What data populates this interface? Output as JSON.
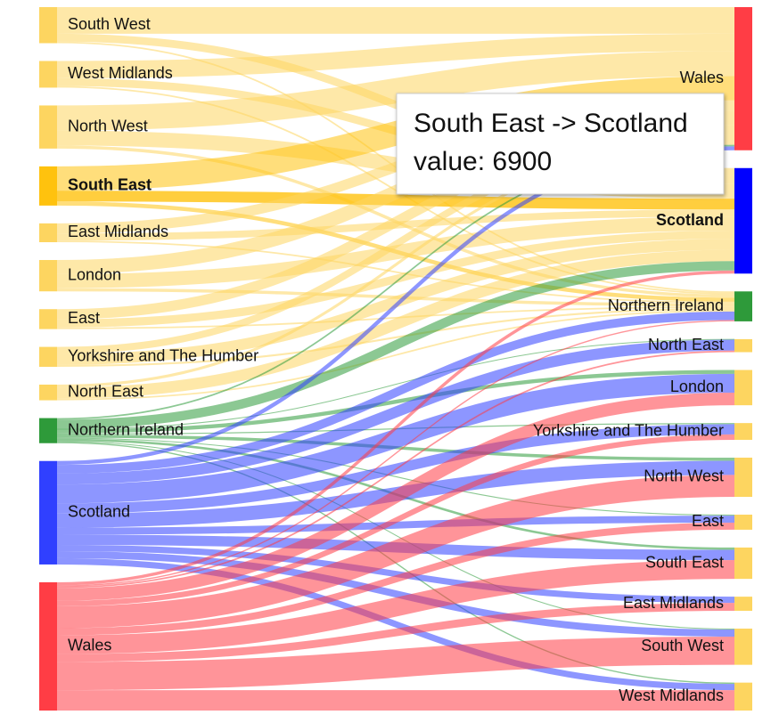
{
  "chart_data": {
    "type": "sankey",
    "nodes": [
      {
        "name": "South West",
        "color": "#fdd560",
        "side": "left"
      },
      {
        "name": "West Midlands",
        "color": "#fdd560",
        "side": "left"
      },
      {
        "name": "North West",
        "color": "#fdd560",
        "side": "left"
      },
      {
        "name": "South East",
        "color": "#ffc20e",
        "side": "left"
      },
      {
        "name": "East Midlands",
        "color": "#fdd560",
        "side": "left"
      },
      {
        "name": "London",
        "color": "#fdd560",
        "side": "left"
      },
      {
        "name": "East",
        "color": "#fdd560",
        "side": "left"
      },
      {
        "name": "Yorkshire and The Humber",
        "color": "#fdd560",
        "side": "left"
      },
      {
        "name": "North East",
        "color": "#fdd560",
        "side": "left"
      },
      {
        "name": "Northern Ireland",
        "color": "#2e9a3a",
        "side": "left"
      },
      {
        "name": "Scotland",
        "color": "#3040ff",
        "side": "left"
      },
      {
        "name": "Wales",
        "color": "#ff3d45",
        "side": "left"
      },
      {
        "name": "Wales",
        "color": "#ff3d45",
        "side": "right"
      },
      {
        "name": "Scotland",
        "color": "#0000ff",
        "side": "right"
      },
      {
        "name": "Northern Ireland",
        "color": "#2e9a3a",
        "side": "right"
      },
      {
        "name": "North East",
        "color": "#fdd560",
        "side": "right"
      },
      {
        "name": "London",
        "color": "#fdd560",
        "side": "right"
      },
      {
        "name": "Yorkshire and The Humber",
        "color": "#fdd560",
        "side": "right"
      },
      {
        "name": "North West",
        "color": "#fdd560",
        "side": "right"
      },
      {
        "name": "East",
        "color": "#fdd560",
        "side": "right"
      },
      {
        "name": "South East",
        "color": "#fdd560",
        "side": "right"
      },
      {
        "name": "East Midlands",
        "color": "#fdd560",
        "side": "right"
      },
      {
        "name": "South West",
        "color": "#fdd560",
        "side": "right"
      },
      {
        "name": "West Midlands",
        "color": "#fdd560",
        "side": "right"
      }
    ],
    "links": [
      {
        "source": 0,
        "target": 12,
        "value": 17000
      },
      {
        "source": 0,
        "target": 13,
        "value": 5000
      },
      {
        "source": 0,
        "target": 14,
        "value": 1000
      },
      {
        "source": 1,
        "target": 12,
        "value": 11000
      },
      {
        "source": 1,
        "target": 13,
        "value": 5000
      },
      {
        "source": 1,
        "target": 14,
        "value": 1000
      },
      {
        "source": 2,
        "target": 12,
        "value": 16000
      },
      {
        "source": 2,
        "target": 13,
        "value": 9500
      },
      {
        "source": 2,
        "target": 14,
        "value": 2000
      },
      {
        "source": 3,
        "target": 12,
        "value": 15500
      },
      {
        "source": 3,
        "target": 13,
        "value": 6900
      },
      {
        "source": 3,
        "target": 14,
        "value": 2600
      },
      {
        "source": 4,
        "target": 12,
        "value": 6500
      },
      {
        "source": 4,
        "target": 13,
        "value": 4500
      },
      {
        "source": 4,
        "target": 14,
        "value": 1000
      },
      {
        "source": 5,
        "target": 12,
        "value": 9000
      },
      {
        "source": 5,
        "target": 13,
        "value": 9000
      },
      {
        "source": 5,
        "target": 14,
        "value": 2000
      },
      {
        "source": 6,
        "target": 12,
        "value": 6500
      },
      {
        "source": 6,
        "target": 13,
        "value": 5200
      },
      {
        "source": 6,
        "target": 14,
        "value": 1000
      },
      {
        "source": 7,
        "target": 12,
        "value": 4500
      },
      {
        "source": 7,
        "target": 13,
        "value": 7000
      },
      {
        "source": 7,
        "target": 14,
        "value": 1200
      },
      {
        "source": 8,
        "target": 12,
        "value": 1800
      },
      {
        "source": 8,
        "target": 13,
        "value": 7200
      },
      {
        "source": 8,
        "target": 14,
        "value": 1000
      },
      {
        "source": 9,
        "target": 12,
        "value": 1000
      },
      {
        "source": 9,
        "target": 13,
        "value": 6000
      },
      {
        "source": 9,
        "target": 15,
        "value": 300
      },
      {
        "source": 9,
        "target": 16,
        "value": 2500
      },
      {
        "source": 9,
        "target": 17,
        "value": 700
      },
      {
        "source": 9,
        "target": 18,
        "value": 2000
      },
      {
        "source": 9,
        "target": 19,
        "value": 600
      },
      {
        "source": 9,
        "target": 20,
        "value": 1500
      },
      {
        "source": 9,
        "target": 22,
        "value": 600
      },
      {
        "source": 9,
        "target": 23,
        "value": 800
      },
      {
        "source": 10,
        "target": 12,
        "value": 2500
      },
      {
        "source": 10,
        "target": 14,
        "value": 5500
      },
      {
        "source": 10,
        "target": 15,
        "value": 7000
      },
      {
        "source": 10,
        "target": 16,
        "value": 12000
      },
      {
        "source": 10,
        "target": 17,
        "value": 6500
      },
      {
        "source": 10,
        "target": 18,
        "value": 9000
      },
      {
        "source": 10,
        "target": 19,
        "value": 4500
      },
      {
        "source": 10,
        "target": 20,
        "value": 6500
      },
      {
        "source": 10,
        "target": 21,
        "value": 4000
      },
      {
        "source": 10,
        "target": 22,
        "value": 4500
      },
      {
        "source": 10,
        "target": 23,
        "value": 4000
      },
      {
        "source": 11,
        "target": 13,
        "value": 2000
      },
      {
        "source": 11,
        "target": 14,
        "value": 800
      },
      {
        "source": 11,
        "target": 15,
        "value": 1000
      },
      {
        "source": 11,
        "target": 16,
        "value": 8000
      },
      {
        "source": 11,
        "target": 17,
        "value": 3500
      },
      {
        "source": 11,
        "target": 18,
        "value": 14000
      },
      {
        "source": 11,
        "target": 19,
        "value": 4500
      },
      {
        "source": 11,
        "target": 20,
        "value": 12000
      },
      {
        "source": 11,
        "target": 21,
        "value": 5000
      },
      {
        "source": 11,
        "target": 22,
        "value": 18000
      },
      {
        "source": 11,
        "target": 23,
        "value": 13000
      }
    ],
    "tooltip": {
      "link": 10,
      "text": "South East -> Scotland",
      "value_label": "value: 6900"
    }
  }
}
